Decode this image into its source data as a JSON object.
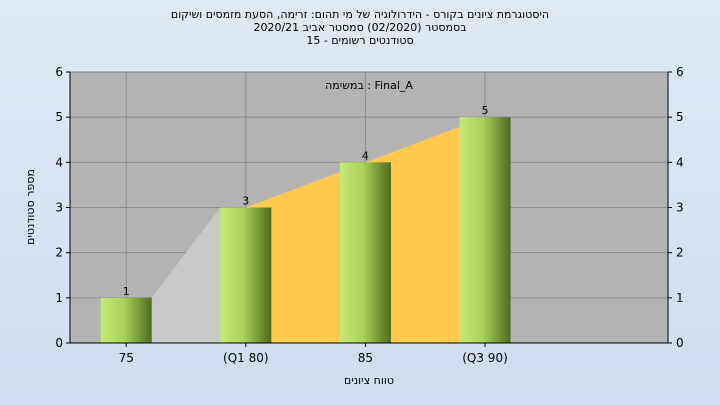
{
  "chart_data": {
    "type": "bar",
    "title_lines": [
      "היסטוגרמת ציונים בקורס - הידרולוגיה של מי תהום: זרימה, הסעת מזמסים ושיקום",
      "בסמסטר  (02/2020)  סמסטר אביב 2020/21",
      "סטודנטים רשומים - 15"
    ],
    "annotation": "במשימה : Final_A",
    "xlabel": "טווח ציונים",
    "ylabel": "מספר סטודנטים",
    "categories": [
      "75",
      "(Q1 80)",
      "85",
      "(Q3 90)"
    ],
    "values": [
      1,
      3,
      4,
      5
    ],
    "ylim": [
      0,
      6
    ],
    "yticks": [
      0,
      1,
      2,
      3,
      4,
      5,
      6
    ],
    "grid": true,
    "colors": {
      "plot_bg": "#b3b3b3",
      "bar_light": "#c6ea76",
      "bar_dark": "#4f6b1e",
      "area_yellow": "#ffc84f",
      "area_gray": "#c9c9c9"
    }
  }
}
